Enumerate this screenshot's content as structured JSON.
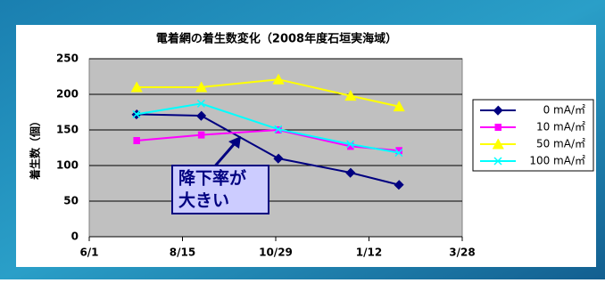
{
  "chart_data": {
    "type": "line",
    "title": "電着網の着生数変化（2008年度石垣実海域）",
    "y_label": "着生数（個）",
    "x": [
      "2008-07-09",
      "2008-08-30",
      "2008-10-31",
      "2008-12-28",
      "2009-02-05"
    ],
    "xlim": [
      "2008-06-01",
      "2009-03-28"
    ],
    "xticks": [
      {
        "value": "2008-06-01",
        "label": "6/1"
      },
      {
        "value": "2008-08-15",
        "label": "8/15"
      },
      {
        "value": "2008-10-29",
        "label": "10/29"
      },
      {
        "value": "2009-01-12",
        "label": "1/12"
      },
      {
        "value": "2009-03-28",
        "label": "3/28"
      }
    ],
    "ylim": [
      0,
      250
    ],
    "yticks": [
      0,
      50,
      100,
      150,
      200,
      250
    ],
    "grid": true,
    "legend": "right",
    "series": [
      {
        "name": "0 mA/㎡",
        "color": "#000080",
        "marker": "diamond",
        "values": [
          172,
          170,
          110,
          90,
          73
        ]
      },
      {
        "name": "10 mA/㎡",
        "color": "#ff00ff",
        "marker": "square",
        "values": [
          135,
          143,
          150,
          127,
          121
        ]
      },
      {
        "name": "50 mA/㎡",
        "color": "#ffff00",
        "marker": "triangle",
        "values": [
          210,
          210,
          221,
          198,
          183
        ]
      },
      {
        "name": "100 mA/㎡",
        "color": "#00ffff",
        "marker": "x",
        "values": [
          172,
          187,
          151,
          130,
          118
        ]
      }
    ],
    "annotation": [
      "降下率が",
      "大きい"
    ]
  }
}
